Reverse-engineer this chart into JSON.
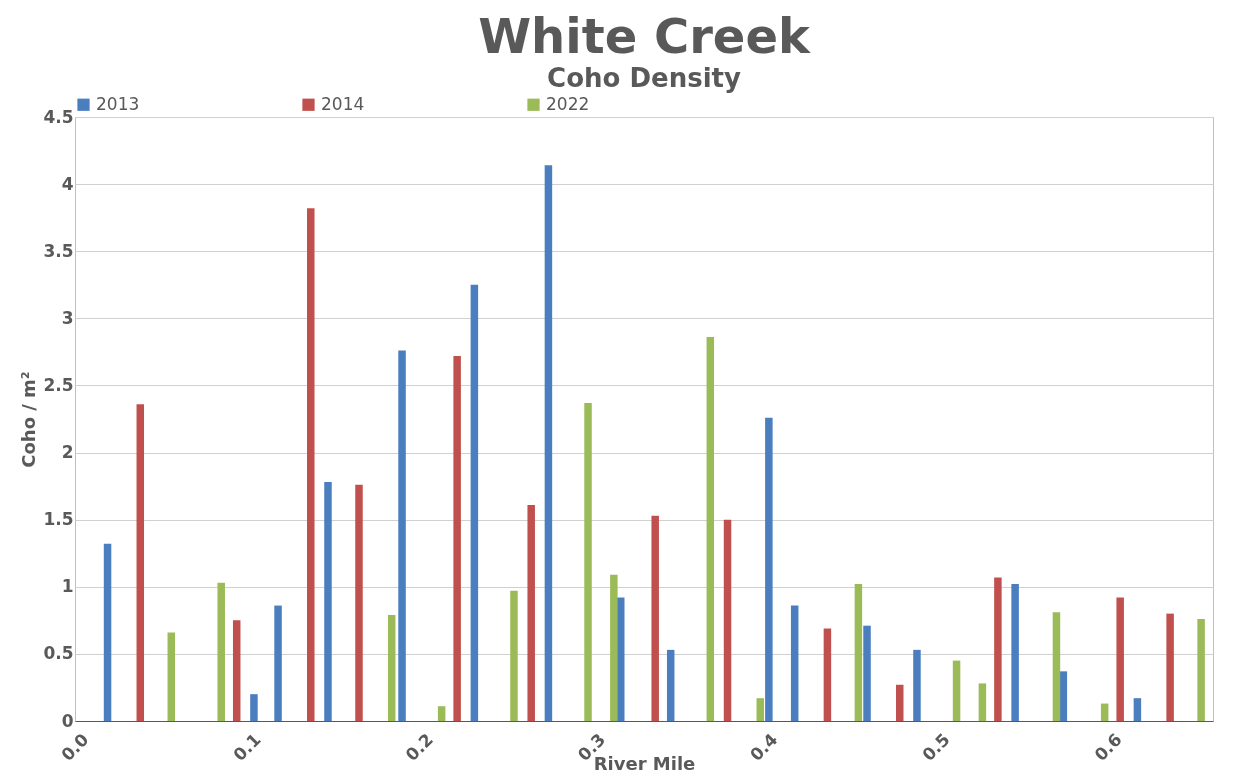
{
  "chart_data": {
    "type": "bar",
    "title": "White Creek",
    "subtitle": "Coho Density",
    "xlabel": "River Mile",
    "ylabel": "Coho / m²",
    "series": [
      {
        "name": "2013",
        "color": "#4a7ebf",
        "x": [
          0.016,
          0.101,
          0.115,
          0.144,
          0.187,
          0.229,
          0.272,
          0.314,
          0.343,
          0.4,
          0.415,
          0.457,
          0.486,
          0.543,
          0.571,
          0.614
        ],
        "values": [
          1.32,
          0.2,
          0.86,
          1.78,
          2.76,
          3.25,
          4.14,
          0.92,
          0.53,
          2.26,
          0.86,
          0.71,
          0.53,
          1.02,
          0.37,
          0.17
        ]
      },
      {
        "name": "2014",
        "color": "#c0504d",
        "x": [
          0.035,
          0.091,
          0.134,
          0.162,
          0.219,
          0.262,
          0.334,
          0.376,
          0.434,
          0.476,
          0.533,
          0.604,
          0.633
        ],
        "values": [
          2.36,
          0.75,
          3.82,
          1.76,
          2.72,
          1.61,
          1.53,
          1.5,
          0.69,
          0.27,
          1.07,
          0.92,
          0.8
        ]
      },
      {
        "name": "2022",
        "color": "#9bbb59",
        "x": [
          0.053,
          0.082,
          0.181,
          0.21,
          0.252,
          0.295,
          0.31,
          0.366,
          0.395,
          0.452,
          0.509,
          0.524,
          0.567,
          0.595,
          0.651
        ],
        "values": [
          0.66,
          1.03,
          0.79,
          0.11,
          0.97,
          2.37,
          1.09,
          2.86,
          0.17,
          1.02,
          0.45,
          0.28,
          0.81,
          0.13,
          0.76
        ]
      }
    ],
    "xlim": [
      0,
      0.655
    ],
    "xticks": [
      {
        "value": 0,
        "label": "0.0"
      },
      0.1,
      0.2,
      0.3,
      0.4,
      0.5,
      0.6
    ],
    "ylim": [
      0,
      4.5
    ],
    "yticks": [
      0,
      0.5,
      1,
      1.5,
      2,
      2.5,
      3,
      3.5,
      4,
      4.5
    ],
    "grid": "y",
    "legend": "top"
  }
}
